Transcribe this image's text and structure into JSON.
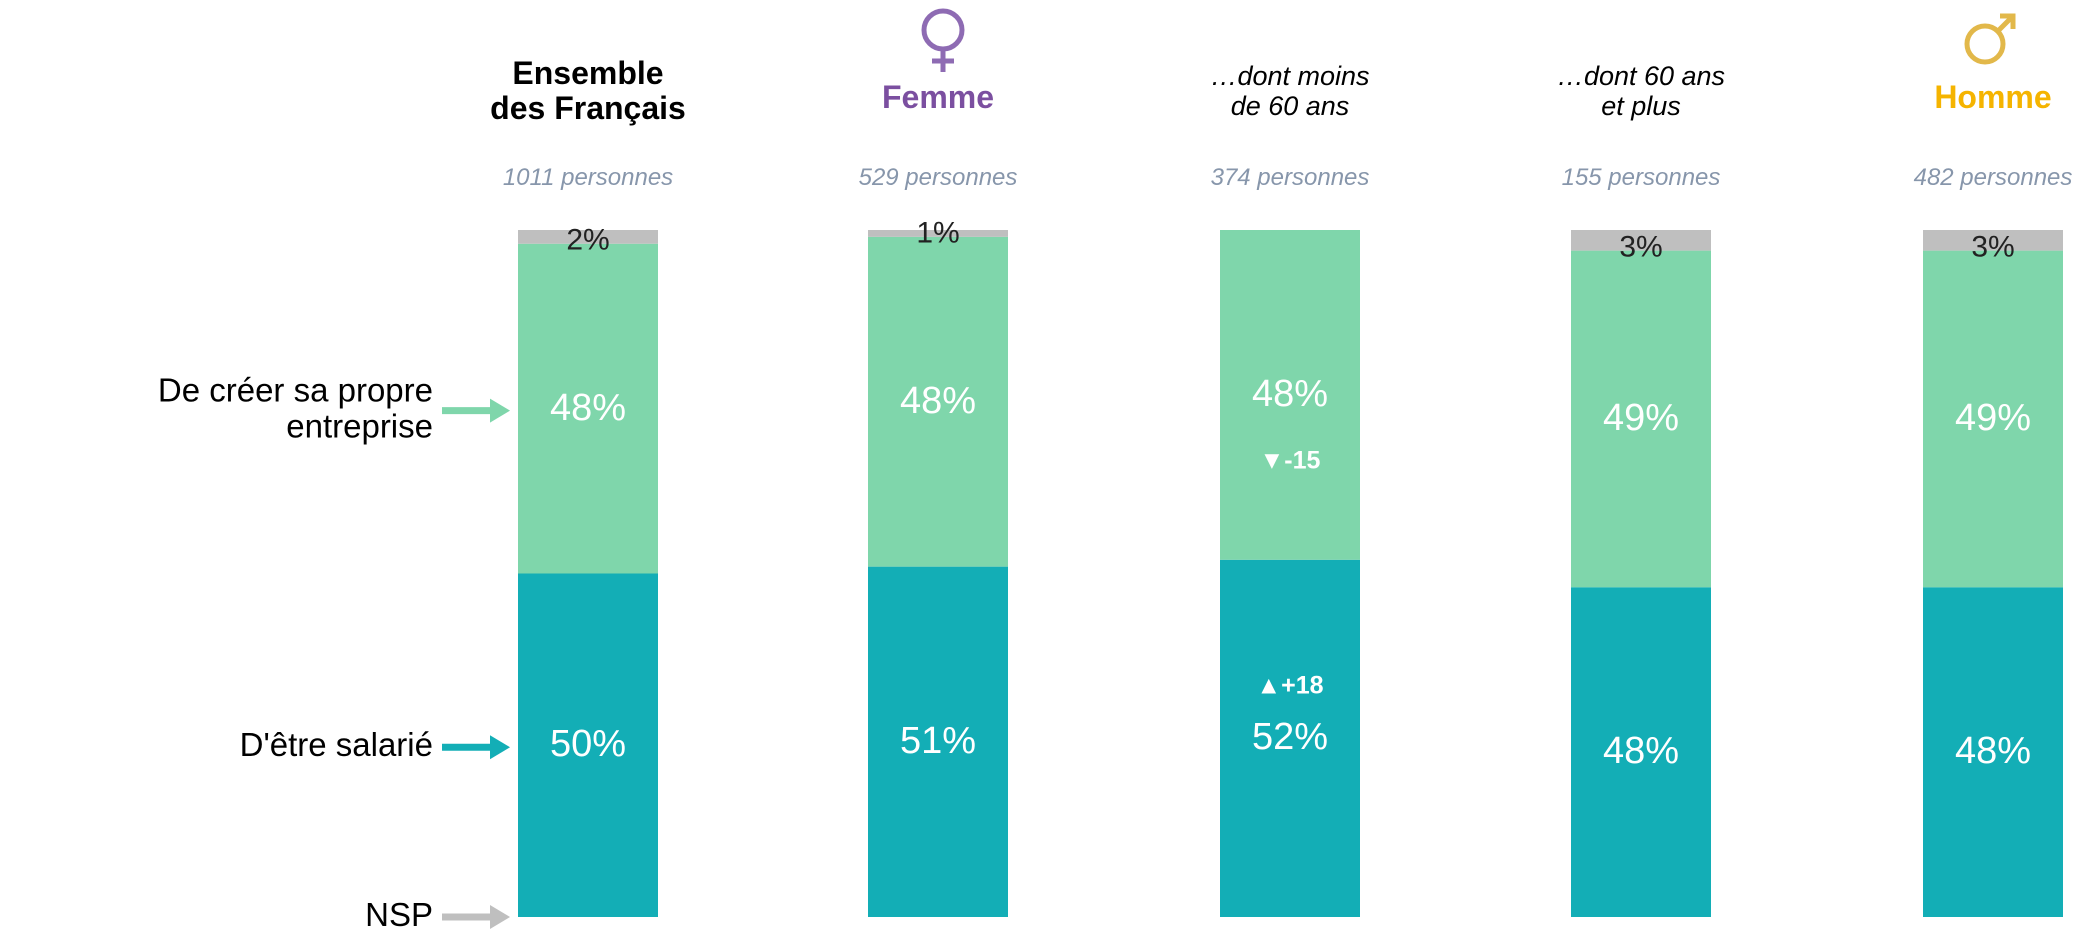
{
  "chart_data": {
    "type": "stacked_bar",
    "categories": [
      "Ensemble\ndes Français",
      "Femme",
      "…dont moins\nde 60 ans",
      "…dont 60 ans\net plus",
      "Homme"
    ],
    "category_colors": [
      "#000000",
      "#7b4fa0",
      "#000000",
      "#000000",
      "#f5b400"
    ],
    "subtitles": [
      "1011 personnes",
      "529 personnes",
      "374 personnes",
      "155 personnes",
      "482 personnes"
    ],
    "series": [
      {
        "name": "D'être salarié",
        "color": "#13aeb6",
        "values": [
          50,
          51,
          52,
          48,
          48
        ],
        "value_labels": [
          "50%",
          "51%",
          "52%",
          "48%",
          "48%"
        ],
        "annotations": [
          null,
          null,
          "▲+18",
          null,
          null
        ]
      },
      {
        "name": "De créer sa propre entreprise",
        "color": "#7fd6ab",
        "values": [
          48,
          48,
          48,
          49,
          49
        ],
        "value_labels": [
          "48%",
          "48%",
          "48%",
          "49%",
          "49%"
        ],
        "annotations": [
          null,
          null,
          "▼-15",
          null,
          null
        ]
      },
      {
        "name": "NSP",
        "color": "#bfbfbf",
        "values": [
          2,
          1,
          0,
          3,
          3
        ],
        "value_labels": [
          "2%",
          "1%",
          null,
          "3%",
          "3%"
        ],
        "annotations": [
          null,
          null,
          null,
          null,
          null
        ]
      }
    ]
  }
}
